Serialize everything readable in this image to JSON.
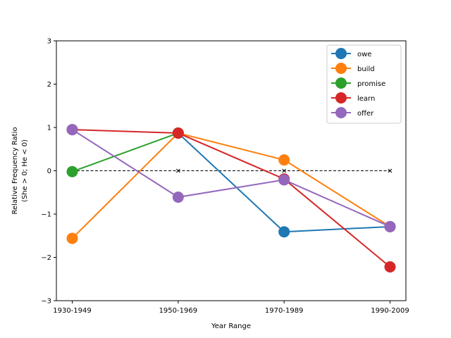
{
  "chart_data": {
    "type": "line",
    "xlabel": "Year Range",
    "ylabel_lines": [
      "Relative Frequency Ratio",
      "(She > 0; He < 0)"
    ],
    "categories": [
      "1930-1949",
      "1950-1969",
      "1970-1989",
      "1990-2009"
    ],
    "ylim": [
      -3,
      3
    ],
    "yticks": [
      -3,
      -2,
      -1,
      0,
      1,
      2,
      3
    ],
    "ytick_labels": [
      "−3",
      "−2",
      "−1",
      "0",
      "1",
      "2",
      "3"
    ],
    "grid": false,
    "legend_position": "top-right",
    "baseline": {
      "y": 0,
      "style": "dashed",
      "marker": "x",
      "color": "#000000"
    },
    "series": [
      {
        "name": "owe",
        "color": "#1f77b4",
        "values": [
          null,
          0.87,
          -1.41,
          -1.29
        ]
      },
      {
        "name": "build",
        "color": "#ff7f0e",
        "values": [
          -1.56,
          0.87,
          0.25,
          -1.29
        ]
      },
      {
        "name": "promise",
        "color": "#2ca02c",
        "values": [
          -0.02,
          0.87,
          null,
          null
        ]
      },
      {
        "name": "learn",
        "color": "#d62728",
        "values": [
          0.95,
          0.87,
          -0.19,
          -2.22
        ]
      },
      {
        "name": "offer",
        "color": "#9467bd",
        "values": [
          0.95,
          -0.61,
          -0.21,
          -1.29
        ]
      }
    ]
  }
}
